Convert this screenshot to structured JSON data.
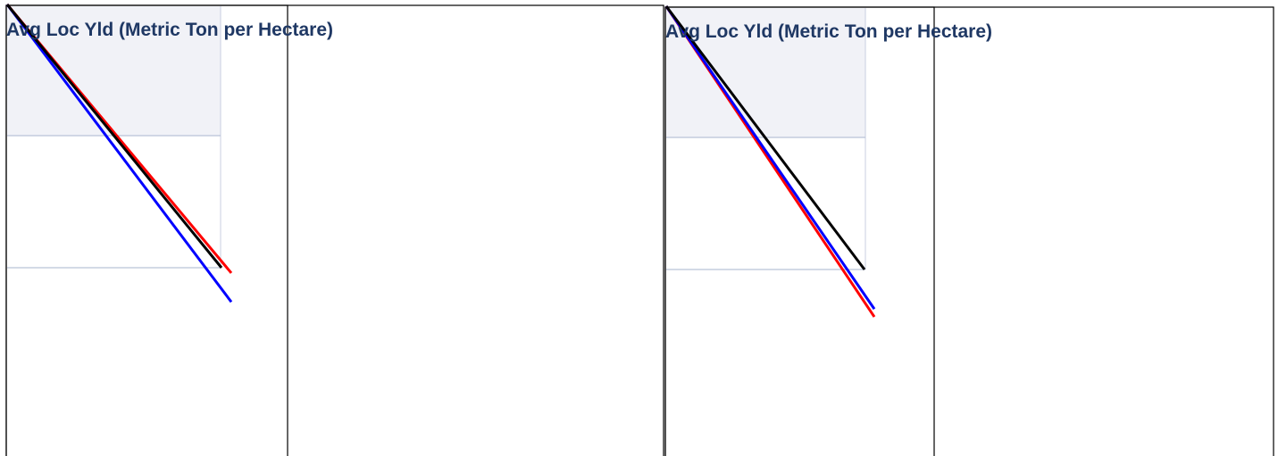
{
  "chart_data": [
    {
      "type": "line",
      "title": "Avg Loc Yld (Metric Ton per Hectare)",
      "series": [
        {
          "color": "#ff0000",
          "values": [
            1.0,
            -0.02
          ]
        },
        {
          "color": "#0000ff",
          "values": [
            1.0,
            -0.13
          ]
        },
        {
          "color": "#000000",
          "values": [
            1.0,
            0.0
          ]
        }
      ]
    },
    {
      "type": "line",
      "title": "Avg Loc Yld (Metric Ton per Hectare)",
      "series": [
        {
          "color": "#ff0000",
          "values": [
            1.0,
            -0.18
          ]
        },
        {
          "color": "#0000ff",
          "values": [
            1.0,
            -0.15
          ]
        },
        {
          "color": "#000000",
          "values": [
            1.0,
            0.0
          ]
        }
      ]
    }
  ]
}
